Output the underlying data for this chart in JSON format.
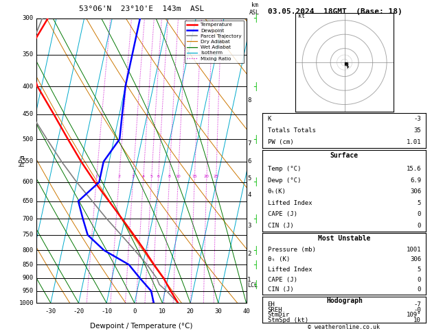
{
  "title_left": "53°06'N  23°10'E  143m  ASL",
  "title_right": "03.05.2024  18GMT  (Base: 18)",
  "xlabel": "Dewpoint / Temperature (°C)",
  "ylabel_left": "hPa",
  "pressure_levels": [
    300,
    350,
    400,
    450,
    500,
    550,
    600,
    650,
    700,
    750,
    800,
    850,
    900,
    950,
    1000
  ],
  "xmin": -35,
  "xmax": 40,
  "skew": 22,
  "temp_color": "#ff0000",
  "dewp_color": "#0000ff",
  "parcel_color": "#808080",
  "dry_adiabat_color": "#cc7700",
  "wet_adiabat_color": "#007700",
  "isotherm_color": "#00aacc",
  "mixing_ratio_color": "#cc00cc",
  "background_color": "#ffffff",
  "legend_items": [
    {
      "label": "Temperature",
      "color": "#ff0000",
      "lw": 1.8,
      "ls": "-"
    },
    {
      "label": "Dewpoint",
      "color": "#0000ff",
      "lw": 1.8,
      "ls": "-"
    },
    {
      "label": "Parcel Trajectory",
      "color": "#808080",
      "lw": 1.2,
      "ls": "-"
    },
    {
      "label": "Dry Adiabat",
      "color": "#cc7700",
      "lw": 0.9,
      "ls": "-"
    },
    {
      "label": "Wet Adiabat",
      "color": "#007700",
      "lw": 0.9,
      "ls": "-"
    },
    {
      "label": "Isotherm",
      "color": "#00aacc",
      "lw": 0.9,
      "ls": "-"
    },
    {
      "label": "Mixing Ratio",
      "color": "#cc00cc",
      "lw": 0.9,
      "ls": ":"
    }
  ],
  "km_ticks": [
    1,
    2,
    3,
    4,
    5,
    6,
    7,
    8
  ],
  "km_pressures": [
    907,
    812,
    721,
    634,
    590,
    549,
    509,
    424
  ],
  "lcl_pressure": 927,
  "surface_data_keys": [
    "Temp (°C)",
    "Dewp (°C)",
    "θₜ(K)",
    "Lifted Index",
    "CAPE (J)",
    "CIN (J)"
  ],
  "surface_data_vals": [
    "15.6",
    "6.9",
    "306",
    "5",
    "0",
    "0"
  ],
  "most_unstable_keys": [
    "Pressure (mb)",
    "θₜ (K)",
    "Lifted Index",
    "CAPE (J)",
    "CIN (J)"
  ],
  "most_unstable_vals": [
    "1001",
    "306",
    "5",
    "0",
    "0"
  ],
  "hodograph_keys": [
    "EH",
    "SREH",
    "StmDir",
    "StmSpd (kt)"
  ],
  "hodograph_vals": [
    "-7",
    "-0",
    "109°",
    "10"
  ],
  "index_keys": [
    "K",
    "Totals Totals",
    "PW (cm)"
  ],
  "index_vals": [
    "-3",
    "35",
    "1.01"
  ],
  "temp_pressure": [
    1000,
    950,
    900,
    850,
    800,
    750,
    700,
    650,
    600,
    550,
    500,
    450,
    400,
    350,
    300
  ],
  "temp_vals": [
    15.6,
    12.0,
    8.5,
    4.0,
    -0.5,
    -5.5,
    -11.0,
    -17.0,
    -23.5,
    -30.0,
    -36.5,
    -43.5,
    -51.5,
    -58.0,
    -53.0
  ],
  "dewp_pressure": [
    1000,
    950,
    900,
    850,
    800,
    750,
    700,
    650,
    600,
    550,
    500,
    450,
    400,
    350,
    300
  ],
  "dewp_vals": [
    6.9,
    5.0,
    0.0,
    -5.0,
    -15.0,
    -22.0,
    -25.0,
    -28.0,
    -22.0,
    -22.0,
    -18.0,
    -19.0,
    -20.0,
    -20.0,
    -20.0
  ],
  "parcel_pressure": [
    1000,
    950,
    925,
    900,
    850,
    800,
    750,
    700,
    650,
    600,
    550,
    500,
    450,
    400,
    350,
    300
  ],
  "parcel_vals": [
    15.6,
    10.5,
    7.5,
    6.0,
    1.5,
    -4.0,
    -10.0,
    -16.5,
    -23.0,
    -30.0,
    -37.0,
    -44.0,
    -51.5,
    -57.0,
    -57.5,
    -55.0
  ],
  "mixing_ratio_vals": [
    1,
    2,
    3,
    4,
    5,
    6,
    8,
    10,
    15,
    20,
    25
  ],
  "isotherm_step": 10,
  "dry_adiabat_thetas": [
    230,
    250,
    270,
    290,
    310,
    330,
    350,
    370,
    390,
    410,
    430
  ],
  "wet_adiabat_T0s": [
    -30,
    -20,
    -10,
    0,
    10,
    20,
    30,
    40
  ]
}
